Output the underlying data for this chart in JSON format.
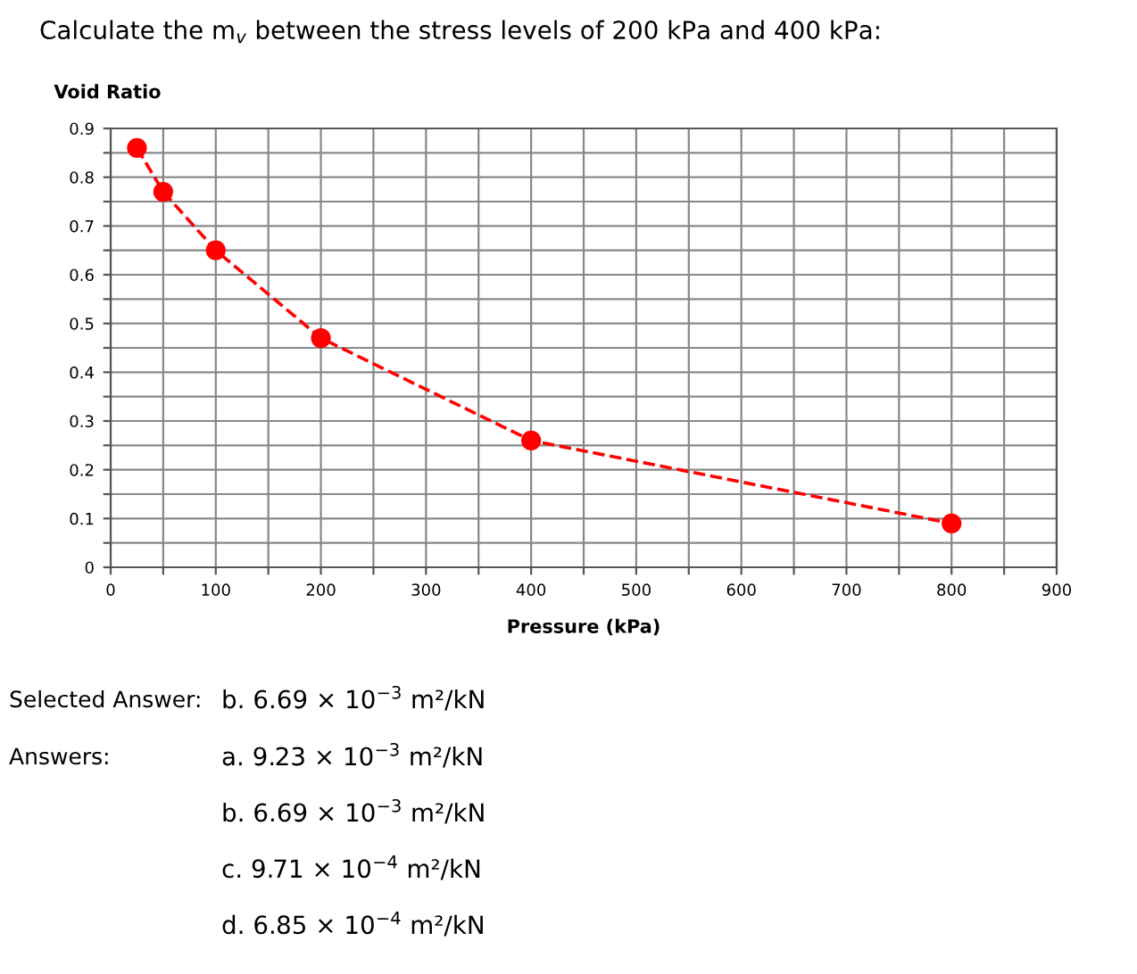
{
  "chart_data": {
    "type": "line",
    "title": "Calculate the m$_{v}$ between the stress levels of 200 kPa and 400 kPa:",
    "xlabel": "Pressure (kPa)",
    "ylabel": "Void Ratio",
    "x": [
      25,
      50,
      100,
      200,
      400,
      800
    ],
    "series": [
      {
        "color": "#ff0000",
        "values": [
          0.86,
          0.77,
          0.65,
          0.47,
          0.26,
          0.09
        ]
      }
    ],
    "marker": "circle",
    "line_style": "dashed",
    "grid": true,
    "legend": false,
    "xlim": [
      0,
      900
    ],
    "ylim": [
      0,
      0.9
    ],
    "xticks": [
      0,
      {
        "value": 50,
        "label": null
      },
      100,
      {
        "value": 150,
        "label": null
      },
      200,
      {
        "value": 250,
        "label": null
      },
      300,
      {
        "value": 350,
        "label": null
      },
      400,
      {
        "value": 450,
        "label": null
      },
      500,
      {
        "value": 550,
        "label": null
      },
      600,
      {
        "value": 650,
        "label": null
      },
      700,
      {
        "value": 750,
        "label": null
      },
      800,
      {
        "value": 850,
        "label": null
      },
      900
    ],
    "yticks": [
      0,
      {
        "value": 0.05,
        "label": null
      },
      0.1,
      {
        "value": 0.15,
        "label": null
      },
      0.2,
      {
        "value": 0.25,
        "label": null
      },
      0.3,
      {
        "value": 0.35,
        "label": null
      },
      0.4,
      {
        "value": 0.45,
        "label": null
      },
      0.5,
      {
        "value": 0.55,
        "label": null
      },
      0.6,
      {
        "value": 0.65,
        "label": null
      },
      0.7,
      {
        "value": 0.75,
        "label": null
      },
      0.8,
      {
        "value": 0.85,
        "label": null
      },
      0.9
    ],
    "annotations": [
      "Selected Answer:",
      "b. 6.69 × 10$^{−3}$ m²/kN",
      "Answers:",
      "a. 9.23 × 10$^{−3}$ m²/kN",
      "b. 6.69 × 10$^{−3}$ m²/kN",
      "c. 9.71 × 10$^{−4}$ m²/kN",
      "d. 6.85 × 10$^{−4}$ m²/kN"
    ]
  }
}
